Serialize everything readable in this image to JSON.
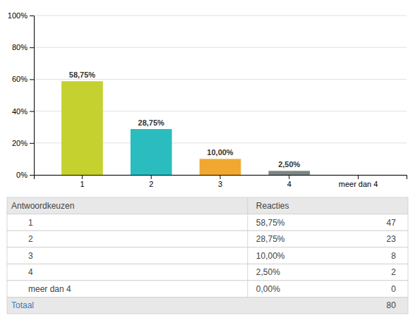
{
  "chart_data": [
    {
      "type": "bar",
      "categories": [
        "1",
        "2",
        "3",
        "4",
        "meer dan 4"
      ],
      "values": [
        58.75,
        28.75,
        10.0,
        2.5,
        0.0
      ],
      "value_labels": [
        "58,75%",
        "28,75%",
        "10,00%",
        "2,50%",
        null
      ],
      "data_labels": true,
      "colors": [
        "#c5d12e",
        "#2bbcbf",
        "#f0a830",
        "#7d8585",
        "#cccccc"
      ],
      "ylim": [
        0,
        100
      ],
      "yticks": [
        {
          "value": 0,
          "label": "0%"
        },
        {
          "value": 20,
          "label": "20%"
        },
        {
          "value": 40,
          "label": "40%"
        },
        {
          "value": 60,
          "label": "60%"
        },
        {
          "value": 80,
          "label": "80%"
        },
        {
          "value": 100,
          "label": "100%"
        }
      ],
      "grid": true
    },
    {
      "type": "table",
      "columns": [
        "Antwoordkeuzen",
        "Reacties"
      ],
      "categories": [
        "1",
        "2",
        "3",
        "4",
        "meer dan 4"
      ],
      "percent_labels": [
        "58,75%",
        "28,75%",
        "10,00%",
        "2,50%",
        "0,00%"
      ],
      "counts": [
        47,
        23,
        8,
        2,
        0
      ],
      "total_label": "Totaal",
      "total_color": "#3a7abf",
      "total": 80
    }
  ]
}
